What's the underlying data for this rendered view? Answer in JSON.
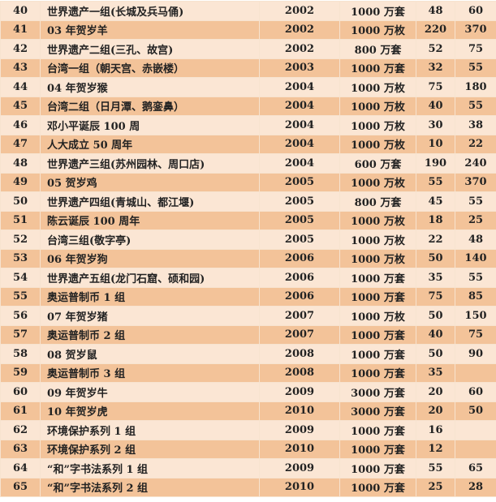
{
  "rows": [
    {
      "no": "40",
      "name": "世界遗产一组(长城及兵马俑)",
      "year": "2002",
      "qty": "1000 万套",
      "a": "48",
      "b": "60"
    },
    {
      "no": "41",
      "name": "03 年贺岁羊",
      "year": "2002",
      "qty": "1000 万枚",
      "a": "220",
      "b": "370"
    },
    {
      "no": "42",
      "name": "世界遗产二组(三孔、故宫)",
      "year": "2002",
      "qty": "800 万套",
      "a": "52",
      "b": "75"
    },
    {
      "no": "43",
      "name": "台湾一组（朝天宫、赤嵌楼）",
      "year": "2003",
      "qty": "1000 万套",
      "a": "32",
      "b": "55"
    },
    {
      "no": "44",
      "name": "04 年贺岁猴",
      "year": "2004",
      "qty": "1000 万枚",
      "a": "75",
      "b": "180"
    },
    {
      "no": "45",
      "name": "台湾二组（日月潭、鹅銮鼻）",
      "year": "2004",
      "qty": "1000 万枚",
      "a": "40",
      "b": "55"
    },
    {
      "no": "46",
      "name": "邓小平诞辰 100 周",
      "year": "2004",
      "qty": "1000 万枚",
      "a": "30",
      "b": "38"
    },
    {
      "no": "47",
      "name": "人大成立 50 周年",
      "year": "2004",
      "qty": "1000 万枚",
      "a": "10",
      "b": "22"
    },
    {
      "no": "48",
      "name": "世界遗产三组(苏州园林、周口店)",
      "year": "2004",
      "qty": "600 万套",
      "a": "190",
      "b": "240"
    },
    {
      "no": "49",
      "name": "05 贺岁鸡",
      "year": "2005",
      "qty": "1000 万枚",
      "a": "55",
      "b": "370"
    },
    {
      "no": "50",
      "name": "世界遗产四组(青城山、都江堰)",
      "year": "2005",
      "qty": "800 万套",
      "a": "45",
      "b": "55"
    },
    {
      "no": "51",
      "name": "陈云诞辰 100 周年",
      "year": "2005",
      "qty": "1000 万枚",
      "a": "18",
      "b": "25"
    },
    {
      "no": "52",
      "name": "台湾三组(敬字亭)",
      "year": "2005",
      "qty": "1000 万枚",
      "a": "22",
      "b": "48"
    },
    {
      "no": "53",
      "name": "06 年贺岁狗",
      "year": "2006",
      "qty": "1000 万枚",
      "a": "50",
      "b": "140"
    },
    {
      "no": "54",
      "name": "世界遗产五组(龙门石窟、硕和园)",
      "year": "2006",
      "qty": "1000 万套",
      "a": "35",
      "b": "55"
    },
    {
      "no": "55",
      "name": "奥运普制币 1 组",
      "year": "2006",
      "qty": "1000 万套",
      "a": "75",
      "b": "85"
    },
    {
      "no": "56",
      "name": "07 年贺岁猪",
      "year": "2007",
      "qty": "1000 万枚",
      "a": "50",
      "b": "150"
    },
    {
      "no": "57",
      "name": "奥运普制币 2 组",
      "year": "2007",
      "qty": "1000 万套",
      "a": "40",
      "b": "75"
    },
    {
      "no": "58",
      "name": "08 贺岁鼠",
      "year": "2008",
      "qty": "1000 万套",
      "a": "50",
      "b": "90"
    },
    {
      "no": "59",
      "name": "奥运普制币 3 组",
      "year": "2008",
      "qty": "1000 万套",
      "a": "35",
      "b": ""
    },
    {
      "no": "60",
      "name": "09 年贺岁牛",
      "year": "2009",
      "qty": "3000 万套",
      "a": "20",
      "b": "60"
    },
    {
      "no": "61",
      "name": "10 年贺岁虎",
      "year": "2010",
      "qty": "3000 万套",
      "a": "20",
      "b": "50"
    },
    {
      "no": "62",
      "name": "环境保护系列 1 组",
      "year": "2009",
      "qty": "1000 万套",
      "a": "16",
      "b": ""
    },
    {
      "no": "63",
      "name": "环境保护系列 2 组",
      "year": "2010",
      "qty": "1000 万套",
      "a": "12",
      "b": ""
    },
    {
      "no": "64",
      "name": "“和”字书法系列 1 组",
      "year": "2009",
      "qty": "1000 万套",
      "a": "55",
      "b": "65"
    },
    {
      "no": "65",
      "name": "“和”字书法系列 2 组",
      "year": "2010",
      "qty": "1000 万套",
      "a": "25",
      "b": "28"
    }
  ],
  "colors": {
    "row_light": "#fbe6d4",
    "row_dark": "#f3c399"
  }
}
